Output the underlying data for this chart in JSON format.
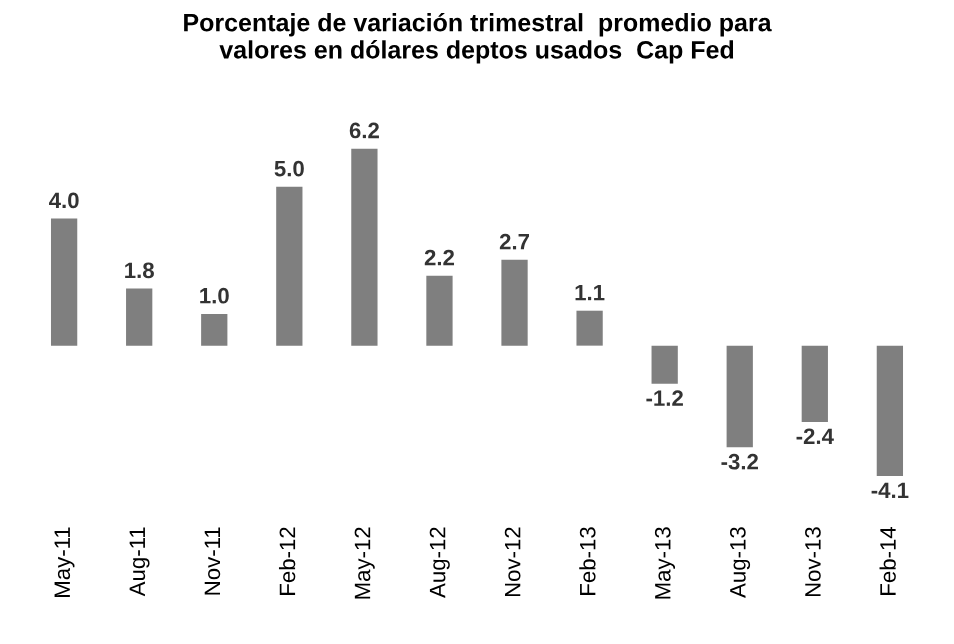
{
  "chart_data": {
    "type": "bar",
    "title": "Porcentaje de variación trimestral  promedio para\nvalores en dólares deptos usados  Cap Fed",
    "categories": [
      "May-11",
      "Aug-11",
      "Nov-11",
      "Feb-12",
      "May-12",
      "Aug-12",
      "Nov-12",
      "Feb-13",
      "May-13",
      "Aug-13",
      "Nov-13",
      "Feb-14"
    ],
    "values": [
      4.0,
      1.8,
      1.0,
      5.0,
      6.2,
      2.2,
      2.7,
      1.1,
      -1.2,
      -3.2,
      -2.4,
      -4.1
    ],
    "value_labels": [
      "4.0",
      "1.8",
      "1.0",
      "5.0",
      "6.2",
      "2.2",
      "2.7",
      "1.1",
      "-1.2",
      "-3.2",
      "-2.4",
      "-4.1"
    ],
    "color": "#7f7f7f",
    "grid": false,
    "legend": false
  }
}
